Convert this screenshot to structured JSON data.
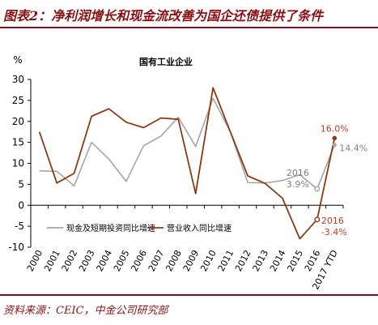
{
  "figure": {
    "title": "图表2：净利润增长和现金流改善为国企还债提供了条件",
    "source": "资料来源：CEIC，中金公司研究部"
  },
  "colors": {
    "accent": "#8a0f12",
    "series_revenue": "#8b3a12",
    "series_cash": "#a6a6a6",
    "annotation_red": "#c0392b",
    "annotation_gray": "#7f7f7f"
  },
  "chart_data": {
    "type": "line",
    "title": "国有工业企业",
    "ylabel": "%",
    "xlabel": "",
    "ylim": [
      -10,
      30
    ],
    "yticks": [
      -10,
      -5,
      0,
      5,
      10,
      15,
      20,
      25,
      30
    ],
    "categories": [
      "2000",
      "2001",
      "2002",
      "2003",
      "2004",
      "2005",
      "2006",
      "2007",
      "2008",
      "2009",
      "2010",
      "2011",
      "2012",
      "2013",
      "2014",
      "2015",
      "2016",
      "2017 YTD"
    ],
    "grid": false,
    "legend_position": "lower-left",
    "series": [
      {
        "name": "现金及短期投资同比增速",
        "color": "#a6a6a6",
        "values": [
          8.2,
          8.1,
          4.6,
          15.0,
          11.0,
          5.7,
          14.2,
          16.5,
          21.0,
          14.0,
          25.5,
          17.5,
          5.4,
          5.3,
          5.9,
          7.3,
          3.9,
          14.4
        ]
      },
      {
        "name": "营业收入同比增速",
        "color": "#8b3a12",
        "values": [
          17.5,
          5.3,
          7.6,
          21.2,
          23.0,
          19.8,
          18.5,
          20.8,
          20.5,
          2.8,
          28.0,
          17.5,
          7.0,
          5.2,
          1.7,
          -8.0,
          -3.4,
          16.0
        ]
      }
    ],
    "annotations": [
      {
        "text": "16.0%",
        "category": "2017 YTD",
        "series": 1
      },
      {
        "text": "14.4%",
        "category": "2017 YTD",
        "series": 0
      },
      {
        "text": "2016",
        "category": "2016",
        "series": 0
      },
      {
        "text": "3.9%",
        "category": "2016",
        "series": 0
      },
      {
        "text": "2016",
        "category": "2016",
        "series": 1
      },
      {
        "text": "-3.4%",
        "category": "2016",
        "series": 1
      }
    ]
  }
}
